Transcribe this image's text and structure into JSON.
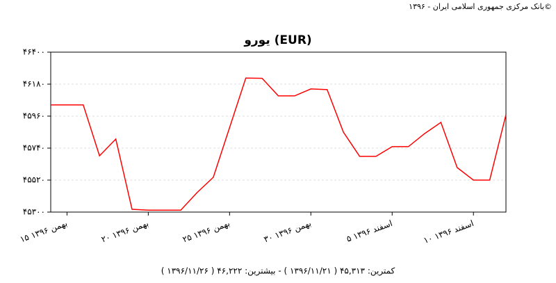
{
  "chart_data": {
    "type": "line",
    "source": "بانک مرکزی جمهوری اسلامی ایران - ۱۳۹۶©",
    "title": "یورو (EUR)",
    "footer": "کمترین: ۴۵,۳۱۳ ( ۱۳۹۶/۱۱/۲۱ ) - بیشترین: ۴۶,۲۲۲ ( ۱۳۹۶/۱۱/۲۶ )",
    "x": [
      "1396/11/14",
      "1396/11/16",
      "1396/11/17",
      "1396/11/18",
      "1396/11/19",
      "1396/11/20",
      "1396/11/22",
      "1396/11/23",
      "1396/11/24",
      "1396/11/26",
      "1396/11/27",
      "1396/11/28",
      "1396/11/29",
      "1396/11/30",
      "1396/12/01",
      "1396/12/02",
      "1396/12/03",
      "1396/12/04",
      "1396/12/05",
      "1396/12/06",
      "1396/12/07",
      "1396/12/08",
      "1396/12/09",
      "1396/12/10",
      "1396/12/11",
      "1396/12/12"
    ],
    "values": [
      46037,
      46037,
      45687,
      45802,
      45319,
      45313,
      45313,
      45434,
      45539,
      46222,
      46220,
      46099,
      46099,
      46147,
      46142,
      45850,
      45683,
      45683,
      45750,
      45750,
      45840,
      45917,
      45606,
      45520,
      45520,
      45970
    ],
    "color": "#ff0000",
    "xlim": [
      "1396/11/14",
      "1396/12/12"
    ],
    "xticks": [
      {
        "value": "1396/11/15",
        "label": "۱۵ بهمن ۱۳۹۶"
      },
      {
        "value": "1396/11/20",
        "label": "۲۰ بهمن ۱۳۹۶"
      },
      {
        "value": "1396/11/25",
        "label": "۲۵ بهمن ۱۳۹۶"
      },
      {
        "value": "1396/11/30",
        "label": "۳۰ بهمن ۱۳۹۶"
      },
      {
        "value": "1396/12/05",
        "label": "۵ اسفند ۱۳۹۶"
      },
      {
        "value": "1396/12/10",
        "label": "۱۰ اسفند ۱۳۹۶"
      }
    ],
    "ylim": [
      45300,
      46400
    ],
    "yticks": [
      {
        "value": 45300,
        "label": "۴۵۳۰۰"
      },
      {
        "value": 45520,
        "label": "۴۵۵۲۰"
      },
      {
        "value": 45740,
        "label": "۴۵۷۴۰"
      },
      {
        "value": 45960,
        "label": "۴۵۹۶۰"
      },
      {
        "value": 46180,
        "label": "۴۶۱۸۰"
      },
      {
        "value": 46400,
        "label": "۴۶۴۰۰"
      }
    ],
    "grid": true
  }
}
